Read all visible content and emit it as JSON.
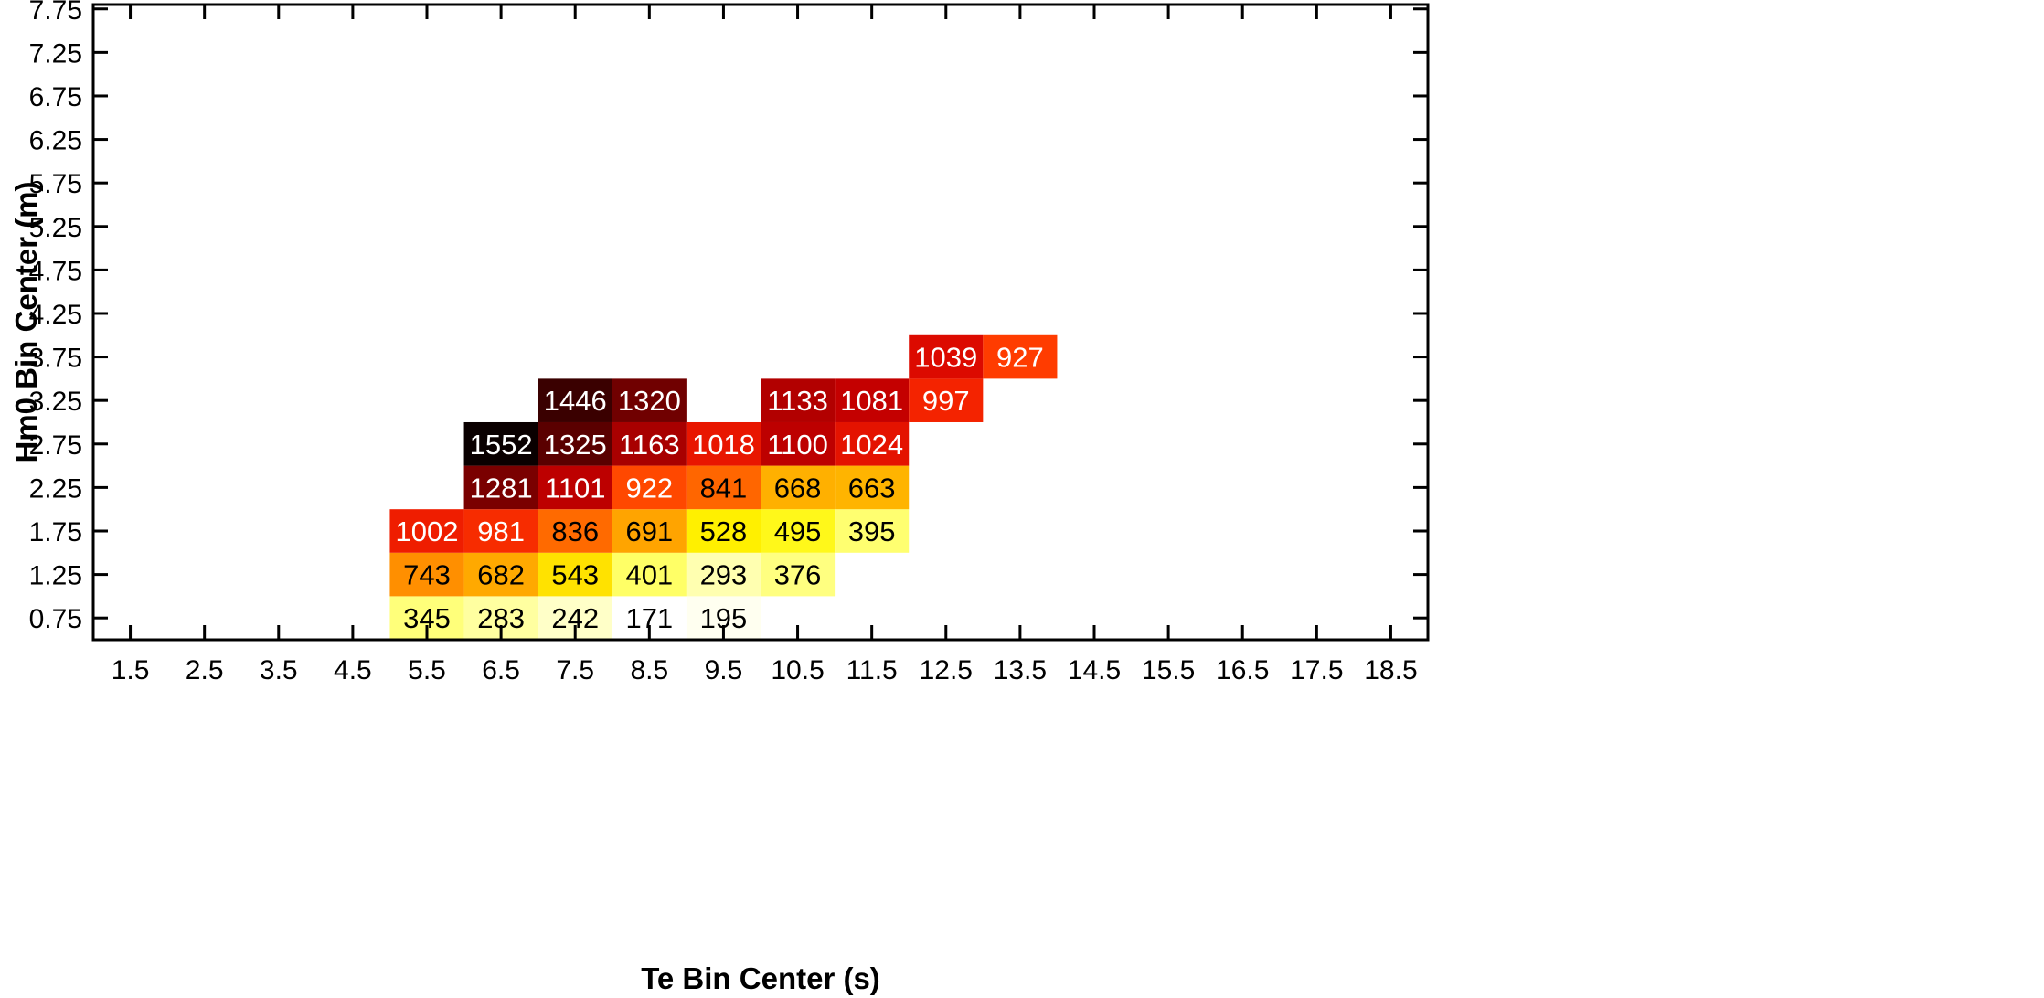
{
  "chart_data": {
    "type": "heatmap",
    "xlabel": "Te Bin Center (s)",
    "ylabel": "Hm0 Bin Center (m)",
    "x_ticks": [
      "1.5",
      "2.5",
      "3.5",
      "4.5",
      "5.5",
      "6.5",
      "7.5",
      "8.5",
      "9.5",
      "10.5",
      "11.5",
      "12.5",
      "13.5",
      "14.5",
      "15.5",
      "16.5",
      "17.5",
      "18.5"
    ],
    "y_ticks": [
      "0.75",
      "1.25",
      "1.75",
      "2.25",
      "2.75",
      "3.25",
      "3.75",
      "4.25",
      "4.75",
      "5.25",
      "5.75",
      "6.25",
      "6.75",
      "7.25",
      "7.75"
    ],
    "xlim": [
      1.0,
      19.0
    ],
    "ylim": [
      0.5,
      7.8
    ],
    "bin_width_x": 1.0,
    "bin_width_y": 0.5,
    "grid": false,
    "colormap": "hot (reversed)",
    "colors": {
      "c1552": "#0a0000",
      "c1446": "#3a0000",
      "c1325": "#5a0000",
      "c1320": "#700000",
      "c1281": "#7a0000",
      "c1163": "#a80000",
      "c1133": "#b20000",
      "c1101": "#bd0000",
      "c1100": "#bd0000",
      "c1081": "#c40000",
      "c1039": "#dc0a00",
      "c1024": "#e41300",
      "c1018": "#e81600",
      "c1002": "#ef1d00",
      "c997": "#f42300",
      "c981": "#f72c00",
      "c927": "#ff3c00",
      "c922": "#ff4800",
      "c841": "#ff6600",
      "c836": "#ff6a00",
      "c743": "#ff8f00",
      "c691": "#ffa400",
      "c682": "#ffa900",
      "c668": "#ffb000",
      "c663": "#ffb400",
      "c543": "#ffe200",
      "c528": "#fff000",
      "c495": "#fff81a",
      "c401": "#ffff66",
      "c395": "#ffff70",
      "c376": "#ffff80",
      "c345": "#ffff7a",
      "c293": "#ffffb0",
      "c283": "#ffffa0",
      "c242": "#ffffc8",
      "c195": "#fffff0",
      "c171": "#ffffff"
    },
    "cells": [
      {
        "te": 5.5,
        "hm0": 0.75,
        "value": 345,
        "color": "#ffff7a",
        "text_color": "#000000"
      },
      {
        "te": 6.5,
        "hm0": 0.75,
        "value": 283,
        "color": "#ffffa0",
        "text_color": "#000000"
      },
      {
        "te": 7.5,
        "hm0": 0.75,
        "value": 242,
        "color": "#ffffc8",
        "text_color": "#000000"
      },
      {
        "te": 8.5,
        "hm0": 0.75,
        "value": 171,
        "color": "#ffffff",
        "text_color": "#000000"
      },
      {
        "te": 9.5,
        "hm0": 0.75,
        "value": 195,
        "color": "#fffff0",
        "text_color": "#000000"
      },
      {
        "te": 5.5,
        "hm0": 1.25,
        "value": 743,
        "color": "#ff8f00",
        "text_color": "#000000"
      },
      {
        "te": 6.5,
        "hm0": 1.25,
        "value": 682,
        "color": "#ffa900",
        "text_color": "#000000"
      },
      {
        "te": 7.5,
        "hm0": 1.25,
        "value": 543,
        "color": "#ffe200",
        "text_color": "#000000"
      },
      {
        "te": 8.5,
        "hm0": 1.25,
        "value": 401,
        "color": "#ffff66",
        "text_color": "#000000"
      },
      {
        "te": 9.5,
        "hm0": 1.25,
        "value": 293,
        "color": "#ffffb0",
        "text_color": "#000000"
      },
      {
        "te": 10.5,
        "hm0": 1.25,
        "value": 376,
        "color": "#ffff80",
        "text_color": "#000000"
      },
      {
        "te": 5.5,
        "hm0": 1.75,
        "value": 1002,
        "color": "#ef1d00",
        "text_color": "#ffffff"
      },
      {
        "te": 6.5,
        "hm0": 1.75,
        "value": 981,
        "color": "#f72c00",
        "text_color": "#ffffff"
      },
      {
        "te": 7.5,
        "hm0": 1.75,
        "value": 836,
        "color": "#ff6a00",
        "text_color": "#000000"
      },
      {
        "te": 8.5,
        "hm0": 1.75,
        "value": 691,
        "color": "#ffa400",
        "text_color": "#000000"
      },
      {
        "te": 9.5,
        "hm0": 1.75,
        "value": 528,
        "color": "#fff000",
        "text_color": "#000000"
      },
      {
        "te": 10.5,
        "hm0": 1.75,
        "value": 495,
        "color": "#fff81a",
        "text_color": "#000000"
      },
      {
        "te": 11.5,
        "hm0": 1.75,
        "value": 395,
        "color": "#ffff70",
        "text_color": "#000000"
      },
      {
        "te": 6.5,
        "hm0": 2.25,
        "value": 1281,
        "color": "#7a0000",
        "text_color": "#ffffff"
      },
      {
        "te": 7.5,
        "hm0": 2.25,
        "value": 1101,
        "color": "#bd0000",
        "text_color": "#ffffff"
      },
      {
        "te": 8.5,
        "hm0": 2.25,
        "value": 922,
        "color": "#ff4800",
        "text_color": "#ffffff"
      },
      {
        "te": 9.5,
        "hm0": 2.25,
        "value": 841,
        "color": "#ff6600",
        "text_color": "#000000"
      },
      {
        "te": 10.5,
        "hm0": 2.25,
        "value": 668,
        "color": "#ffb000",
        "text_color": "#000000"
      },
      {
        "te": 11.5,
        "hm0": 2.25,
        "value": 663,
        "color": "#ffb400",
        "text_color": "#000000"
      },
      {
        "te": 6.5,
        "hm0": 2.75,
        "value": 1552,
        "color": "#0a0000",
        "text_color": "#ffffff"
      },
      {
        "te": 7.5,
        "hm0": 2.75,
        "value": 1325,
        "color": "#5a0000",
        "text_color": "#ffffff"
      },
      {
        "te": 8.5,
        "hm0": 2.75,
        "value": 1163,
        "color": "#a80000",
        "text_color": "#ffffff"
      },
      {
        "te": 9.5,
        "hm0": 2.75,
        "value": 1018,
        "color": "#e81600",
        "text_color": "#ffffff"
      },
      {
        "te": 10.5,
        "hm0": 2.75,
        "value": 1100,
        "color": "#bd0000",
        "text_color": "#ffffff"
      },
      {
        "te": 11.5,
        "hm0": 2.75,
        "value": 1024,
        "color": "#e41300",
        "text_color": "#ffffff"
      },
      {
        "te": 7.5,
        "hm0": 3.25,
        "value": 1446,
        "color": "#3a0000",
        "text_color": "#ffffff"
      },
      {
        "te": 8.5,
        "hm0": 3.25,
        "value": 1320,
        "color": "#700000",
        "text_color": "#ffffff"
      },
      {
        "te": 10.5,
        "hm0": 3.25,
        "value": 1133,
        "color": "#b20000",
        "text_color": "#ffffff"
      },
      {
        "te": 11.5,
        "hm0": 3.25,
        "value": 1081,
        "color": "#c40000",
        "text_color": "#ffffff"
      },
      {
        "te": 12.5,
        "hm0": 3.25,
        "value": 997,
        "color": "#f42300",
        "text_color": "#ffffff"
      },
      {
        "te": 12.5,
        "hm0": 3.75,
        "value": 1039,
        "color": "#dc0a00",
        "text_color": "#ffffff"
      },
      {
        "te": 13.5,
        "hm0": 3.75,
        "value": 927,
        "color": "#ff3c00",
        "text_color": "#ffffff"
      }
    ]
  }
}
